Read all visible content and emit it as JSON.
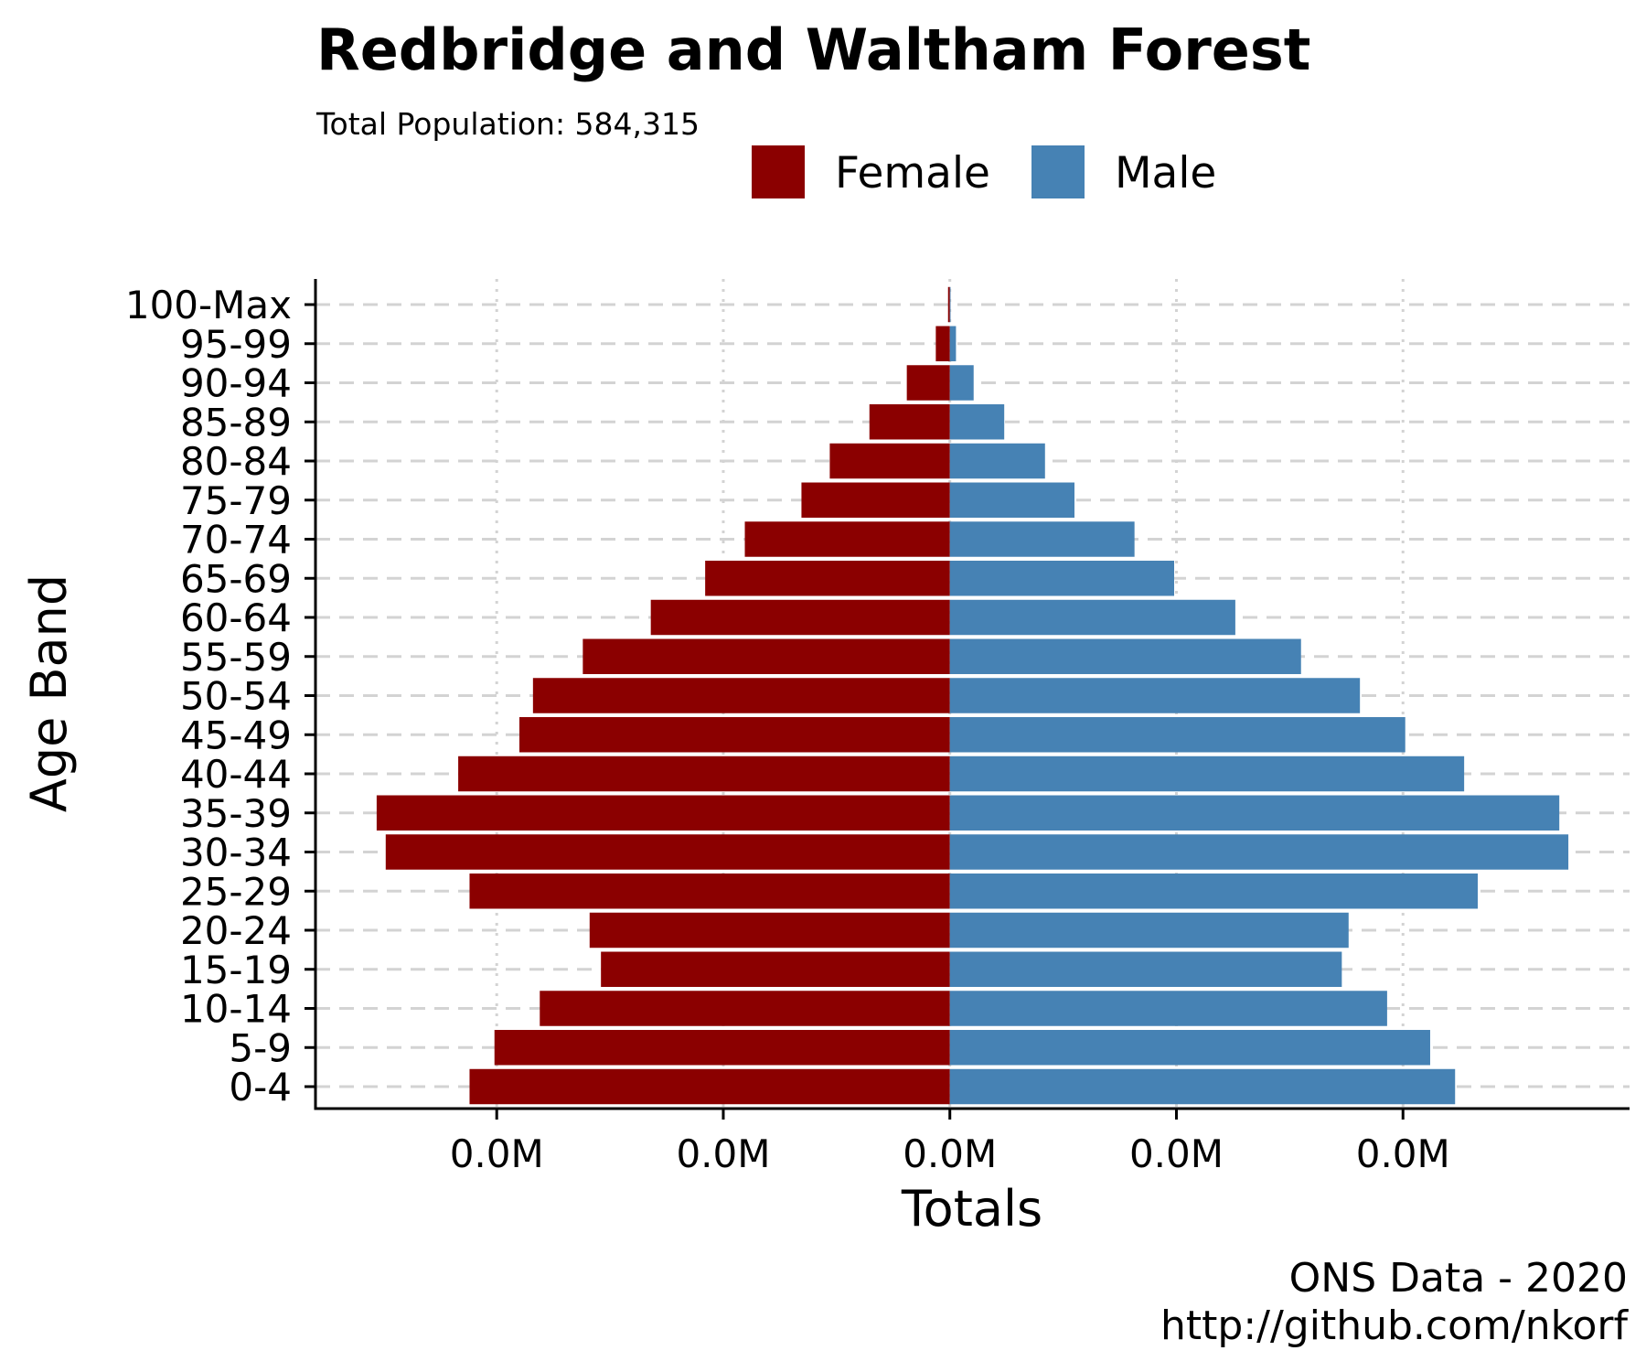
{
  "chart_data": {
    "type": "bar",
    "orientation": "horizontal",
    "layout": "population-pyramid",
    "title": "Redbridge and Waltham Forest",
    "subtitle": "Total Population:  584,315",
    "xlabel": "Totals",
    "ylabel": "Age Band",
    "x_tick_labels": [
      "0.0M",
      "0.0M",
      "0.0M",
      "0.0M",
      "0.0M"
    ],
    "x_ticks": [
      -20000,
      -10000,
      0,
      10000,
      20000
    ],
    "xlim": [
      -28000,
      30000
    ],
    "categories": [
      "0-4",
      "5-9",
      "10-14",
      "15-19",
      "20-24",
      "25-29",
      "30-34",
      "35-39",
      "40-44",
      "45-49",
      "50-54",
      "55-59",
      "60-64",
      "65-69",
      "70-74",
      "75-79",
      "80-84",
      "85-89",
      "90-94",
      "95-99",
      "100-Max"
    ],
    "series": [
      {
        "name": "Female",
        "color": "#8B0000",
        "values": [
          -21200,
          -20100,
          -18100,
          -15400,
          -15900,
          -21200,
          -24900,
          -25300,
          -21700,
          -19000,
          -18400,
          -16200,
          -13200,
          -10800,
          -9050,
          -6550,
          -5300,
          -3550,
          -1900,
          -620,
          -80
        ]
      },
      {
        "name": "Male",
        "color": "#4682B4",
        "values": [
          22300,
          21200,
          19300,
          17300,
          17600,
          23300,
          27300,
          26900,
          22700,
          20100,
          18100,
          15500,
          12600,
          9900,
          8150,
          5500,
          4200,
          2400,
          1050,
          270,
          30
        ]
      }
    ],
    "legend": {
      "position": "top",
      "entries": [
        "Female",
        "Male"
      ]
    },
    "grid": {
      "x_major": "dotted",
      "y_major": "dashed",
      "color": "#d3d3d3"
    },
    "caption": [
      "ONS Data - 2020",
      "http://github.com/nkorf"
    ]
  }
}
